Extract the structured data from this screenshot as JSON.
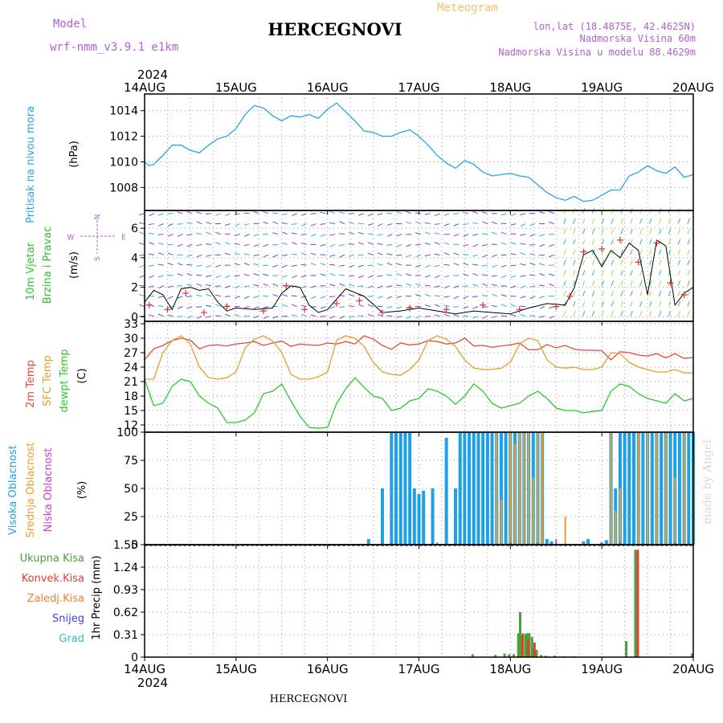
{
  "header": {
    "model_label": "Model",
    "model_name": "wrf-nmm_v3.9.1  e1km",
    "title": "HERCEGNOVI",
    "meteogram_label": "Meteogram",
    "lonlat": "lon,lat (18.4875E, 42.4625N)",
    "elevation": "Nadmorska Visina 60m",
    "model_elevation": "Nadmorska Visina u modelu 88.4629m"
  },
  "footer": {
    "title": "HERCEGNOVI",
    "watermark": "made by Angel"
  },
  "time_axis": {
    "year": "2024",
    "labels": [
      "14AUG",
      "15AUG",
      "16AUG",
      "17AUG",
      "18AUG",
      "19AUG",
      "20AUG"
    ],
    "days": 6
  },
  "colors": {
    "pressure": "#2aa4e0",
    "temp2m": "#e8473c",
    "sfc_temp": "#e0a030",
    "dewpt": "#2ec82e",
    "cloud_high": "#1ea0e6",
    "cloud_mid": "#e8a030",
    "cloud_low": "#d040c0",
    "precip_total": "#4aa03a",
    "precip_conv": "#e04030",
    "precip_frozen": "#f08030",
    "snow": "#4040e0",
    "graupel": "#30c0c0",
    "wind_label": "#30c030",
    "speed_line": "#000000",
    "gust_marker": "#e03030"
  },
  "chart_data": [
    {
      "type": "line",
      "panel": "pressure",
      "ylabel_title": "Pritisak na nivou mora",
      "ylabel_unit": "(hPa)",
      "ylim": [
        1006.2,
        1015.3
      ],
      "yticks": [
        "1008",
        "1010",
        "1012",
        "1014"
      ],
      "ytick_values": [
        1008,
        1010,
        1012,
        1014
      ],
      "series": [
        {
          "x": [
            0.0,
            0.05,
            0.1,
            0.2,
            0.3,
            0.4,
            0.5,
            0.6,
            0.7,
            0.8,
            0.9,
            1.0,
            1.1,
            1.2,
            1.3,
            1.4,
            1.5,
            1.6,
            1.7,
            1.8,
            1.9,
            2.0,
            2.1,
            2.2,
            2.3,
            2.4,
            2.5,
            2.6,
            2.7,
            2.8,
            2.9,
            3.0,
            3.1,
            3.2,
            3.3,
            3.4,
            3.5,
            3.6,
            3.7,
            3.8,
            3.9,
            4.0,
            4.1,
            4.2,
            4.3,
            4.4,
            4.5,
            4.6,
            4.7,
            4.8,
            4.9,
            5.0,
            5.1,
            5.2,
            5.3,
            5.4,
            5.5,
            5.6,
            5.7,
            5.8,
            5.9,
            6.0
          ],
          "y": [
            1010.0,
            1009.7,
            1009.8,
            1010.5,
            1011.3,
            1011.3,
            1010.9,
            1010.7,
            1011.3,
            1011.8,
            1012.0,
            1012.6,
            1013.7,
            1014.4,
            1014.2,
            1013.6,
            1013.2,
            1013.6,
            1013.5,
            1013.7,
            1013.4,
            1014.1,
            1014.6,
            1013.9,
            1013.2,
            1012.4,
            1012.3,
            1012.0,
            1012.0,
            1012.3,
            1012.5,
            1012.0,
            1011.3,
            1010.5,
            1009.9,
            1009.5,
            1010.1,
            1009.8,
            1009.2,
            1008.9,
            1009.0,
            1009.1,
            1008.9,
            1008.8,
            1008.2,
            1007.6,
            1007.2,
            1007.0,
            1007.3,
            1006.9,
            1007.0,
            1007.4,
            1007.8,
            1007.8,
            1008.9,
            1009.2,
            1009.7,
            1009.3,
            1009.1,
            1009.6,
            1008.8,
            1009.0
          ]
        }
      ]
    },
    {
      "type": "barbs",
      "panel": "wind",
      "ylabel_title": "10m Vjetar",
      "ylabel_sub": "Brzina i Pravac",
      "ylabel_unit": "(m/s)",
      "compass": {
        "n": "N",
        "s": "S",
        "e": "E",
        "w": "W"
      },
      "ylim": [
        -0.3,
        7.2
      ],
      "yticks": [
        "0",
        "2",
        "4",
        "6"
      ],
      "ytick_values": [
        0,
        2,
        4,
        6
      ],
      "speed": {
        "x": [
          0.0,
          0.1,
          0.2,
          0.3,
          0.4,
          0.5,
          0.6,
          0.7,
          0.8,
          0.9,
          1.0,
          1.2,
          1.4,
          1.5,
          1.6,
          1.7,
          1.8,
          1.9,
          2.0,
          2.2,
          2.4,
          2.6,
          2.8,
          3.0,
          3.2,
          3.4,
          3.6,
          3.8,
          4.0,
          4.2,
          4.4,
          4.6,
          4.7,
          4.8,
          4.9,
          5.0,
          5.1,
          5.2,
          5.3,
          5.4,
          5.5,
          5.6,
          5.7,
          5.8,
          5.9,
          6.0
        ],
        "y": [
          1.0,
          1.8,
          1.5,
          0.5,
          1.9,
          2.0,
          1.8,
          1.9,
          1.0,
          0.4,
          0.6,
          0.5,
          0.6,
          1.6,
          2.1,
          2.0,
          0.8,
          0.3,
          0.5,
          1.9,
          1.4,
          0.3,
          0.4,
          0.6,
          0.4,
          0.2,
          0.4,
          0.3,
          0.2,
          0.6,
          0.9,
          0.8,
          2.0,
          4.2,
          4.5,
          3.4,
          4.5,
          4.0,
          5.0,
          4.5,
          1.5,
          5.2,
          4.8,
          0.8,
          1.6,
          2.0
        ]
      },
      "gusts": {
        "x": [
          0.05,
          0.25,
          0.45,
          0.65,
          0.9,
          1.3,
          1.55,
          1.75,
          2.1,
          2.35,
          2.6,
          2.9,
          3.3,
          3.7,
          4.1,
          4.5,
          4.65,
          4.8,
          5.0,
          5.2,
          5.4,
          5.6,
          5.75,
          5.9
        ],
        "y": [
          0.8,
          0.5,
          1.6,
          0.3,
          0.7,
          0.4,
          2.1,
          0.5,
          0.9,
          1.1,
          0.3,
          0.6,
          0.5,
          0.8,
          0.5,
          0.7,
          1.4,
          4.4,
          4.6,
          5.2,
          3.7,
          5.0,
          2.3,
          1.5
        ]
      }
    },
    {
      "type": "line",
      "panel": "temperature",
      "ylabel_title": "2m Temp",
      "ylabel_sub": "SFC Temp",
      "ylabel_sub2": "dewpt Temp",
      "ylabel_unit": "(C)",
      "ylim": [
        10.5,
        33.5
      ],
      "yticks": [
        "12",
        "15",
        "18",
        "21",
        "24",
        "27",
        "30",
        "33"
      ],
      "ytick_values": [
        12,
        15,
        18,
        21,
        24,
        27,
        30,
        33
      ],
      "x": [
        0.0,
        0.1,
        0.2,
        0.3,
        0.4,
        0.5,
        0.6,
        0.7,
        0.8,
        0.9,
        1.0,
        1.1,
        1.2,
        1.3,
        1.4,
        1.5,
        1.6,
        1.7,
        1.8,
        1.9,
        2.0,
        2.1,
        2.2,
        2.3,
        2.4,
        2.5,
        2.6,
        2.7,
        2.8,
        2.9,
        3.0,
        3.1,
        3.2,
        3.3,
        3.4,
        3.5,
        3.6,
        3.7,
        3.8,
        3.9,
        4.0,
        4.1,
        4.2,
        4.3,
        4.4,
        4.5,
        4.6,
        4.7,
        4.8,
        4.9,
        5.0,
        5.1,
        5.2,
        5.3,
        5.4,
        5.5,
        5.6,
        5.7,
        5.8,
        5.9,
        6.0
      ],
      "series": [
        {
          "name": "2m Temp",
          "y": [
            25.5,
            27.8,
            28.5,
            29.5,
            30.0,
            29.6,
            27.8,
            28.5,
            28.6,
            28.4,
            28.8,
            29.0,
            29.3,
            28.5,
            29.0,
            29.4,
            28.3,
            28.8,
            28.6,
            28.5,
            29.0,
            28.8,
            29.3,
            28.8,
            30.5,
            29.8,
            28.5,
            27.7,
            29.0,
            28.6,
            28.8,
            29.5,
            29.3,
            28.8,
            29.0,
            30.0,
            28.4,
            28.5,
            28.1,
            28.4,
            28.6,
            29.0,
            27.6,
            27.6,
            28.7,
            28.0,
            28.5,
            27.7,
            27.5,
            27.5,
            27.4,
            25.5,
            27.2,
            27.0,
            26.5,
            26.3,
            26.8,
            25.9,
            26.8,
            25.8,
            26.0
          ]
        },
        {
          "name": "SFC Temp",
          "y": [
            21.5,
            21.5,
            27.0,
            29.5,
            30.5,
            28.8,
            24.0,
            21.8,
            21.5,
            21.8,
            23.0,
            28.0,
            29.8,
            30.5,
            29.4,
            27.0,
            22.5,
            21.5,
            21.5,
            22.0,
            23.0,
            29.6,
            30.5,
            30.0,
            28.3,
            25.0,
            23.0,
            22.5,
            22.3,
            23.5,
            25.5,
            29.5,
            30.5,
            29.8,
            28.3,
            25.5,
            23.8,
            23.5,
            23.5,
            23.8,
            25.0,
            28.8,
            30.0,
            29.5,
            25.5,
            24.0,
            23.8,
            24.0,
            23.5,
            23.5,
            24.0,
            27.0,
            26.8,
            25.0,
            24.0,
            23.5,
            23.0,
            23.0,
            23.5,
            22.8,
            22.8
          ]
        },
        {
          "name": "dewpt Temp",
          "y": [
            21.5,
            16.0,
            16.5,
            20.0,
            21.5,
            21.0,
            18.0,
            16.5,
            15.5,
            12.5,
            12.5,
            13.0,
            14.5,
            18.5,
            19.0,
            20.5,
            17.0,
            13.8,
            11.5,
            11.3,
            11.5,
            16.5,
            19.5,
            21.8,
            19.8,
            18.0,
            17.5,
            15.0,
            15.5,
            17.0,
            17.5,
            19.5,
            19.0,
            18.0,
            16.3,
            18.0,
            20.5,
            19.0,
            16.5,
            15.5,
            16.0,
            16.5,
            18.0,
            19.0,
            17.5,
            15.5,
            15.0,
            15.0,
            14.5,
            14.8,
            15.0,
            19.0,
            20.5,
            20.0,
            18.5,
            17.5,
            17.0,
            16.5,
            18.5,
            17.0,
            17.5
          ]
        }
      ]
    },
    {
      "type": "bar",
      "panel": "cloud",
      "ylabel_title": "Visoka Oblacnost",
      "ylabel_sub": "Srednja Oblacnost",
      "ylabel_sub2": "Niska Oblacnost",
      "ylabel_unit": "(%)",
      "ylim": [
        0,
        100
      ],
      "yticks": [
        "0",
        "25",
        "50",
        "75",
        "100"
      ],
      "ytick_values": [
        0,
        25,
        50,
        75,
        100
      ],
      "series": [
        {
          "name": "Visoka Oblacnost",
          "x": [
            2.45,
            2.6,
            2.7,
            2.75,
            2.8,
            2.85,
            2.9,
            2.95,
            3.0,
            3.05,
            3.1,
            3.15,
            3.3,
            3.4,
            3.45,
            3.5,
            3.55,
            3.6,
            3.65,
            3.7,
            3.75,
            3.8,
            3.85,
            3.9,
            3.95,
            4.0,
            4.05,
            4.1,
            4.15,
            4.2,
            4.25,
            4.3,
            4.35,
            4.4,
            4.45,
            4.5,
            4.55,
            4.6,
            4.65,
            4.7,
            4.75,
            4.8,
            4.85,
            5.0,
            5.05,
            5.1,
            5.15,
            5.2,
            5.25,
            5.3,
            5.35,
            5.4,
            5.45,
            5.5,
            5.55,
            5.6,
            5.65,
            5.7,
            5.75,
            5.8,
            5.85,
            5.9,
            5.95,
            6.0
          ],
          "values": [
            5,
            50,
            100,
            100,
            100,
            100,
            100,
            50,
            45,
            48,
            0,
            50,
            95,
            50,
            100,
            100,
            100,
            100,
            100,
            100,
            100,
            100,
            100,
            100,
            100,
            100,
            100,
            100,
            100,
            100,
            100,
            100,
            100,
            5,
            3,
            0,
            0,
            0,
            0,
            0,
            0,
            3,
            5,
            2,
            4,
            100,
            50,
            100,
            100,
            100,
            100,
            100,
            100,
            100,
            100,
            100,
            100,
            100,
            100,
            100,
            100,
            100,
            100,
            100
          ]
        },
        {
          "name": "Srednja Oblacnost",
          "x": [
            3.85,
            3.9,
            4.0,
            4.05,
            4.1,
            4.15,
            4.2,
            4.25,
            4.3,
            4.35,
            4.6,
            5.1,
            5.15,
            5.2,
            5.4,
            5.5,
            5.6,
            5.7,
            5.8,
            5.9,
            6.0
          ],
          "values": [
            100,
            40,
            100,
            90,
            100,
            100,
            100,
            60,
            100,
            100,
            25,
            100,
            30,
            50,
            100,
            100,
            100,
            100,
            60,
            100,
            80
          ]
        },
        {
          "name": "Niska Oblacnost",
          "x": [
            3.2,
            3.8,
            4.0,
            4.2,
            4.3,
            4.5,
            5.2,
            5.5,
            5.8
          ],
          "values": [
            2,
            0,
            2,
            1,
            2,
            5,
            2,
            1,
            2
          ]
        }
      ]
    },
    {
      "type": "bar",
      "panel": "precip",
      "legend": [
        "Ukupna Kisa",
        "Konvek.Kisa",
        "Zaledj.Kisa",
        "Snijeg",
        "Grad"
      ],
      "ylabel_unit": "1hr Precip (mm)",
      "ylim": [
        0,
        1.55
      ],
      "yticks": [
        "0",
        "0.31",
        "0.62",
        "0.93",
        "1.24",
        "1.55"
      ],
      "ytick_values": [
        0,
        0.31,
        0.62,
        0.93,
        1.24,
        1.55
      ],
      "series": [
        {
          "name": "Ukupna Kisa",
          "x": [
            3.6,
            3.85,
            3.95,
            4.0,
            4.05,
            4.1,
            4.12,
            4.15,
            4.18,
            4.2,
            4.22,
            4.25,
            4.27,
            4.3,
            4.35,
            4.4,
            4.5,
            4.6,
            4.7,
            5.28,
            5.38,
            6.0
          ],
          "values": [
            0.04,
            0.03,
            0.05,
            0.04,
            0.04,
            0.33,
            0.62,
            0.33,
            0.32,
            0.33,
            0.33,
            0.28,
            0.1,
            0.1,
            0.03,
            0.02,
            0.02,
            0.01,
            0.01,
            0.22,
            1.48,
            0.05
          ]
        },
        {
          "name": "Konvek.Kisa",
          "x": [
            4.12,
            4.18,
            4.25,
            5.38
          ],
          "values": [
            0.3,
            0.25,
            0.2,
            1.48
          ]
        }
      ]
    }
  ]
}
